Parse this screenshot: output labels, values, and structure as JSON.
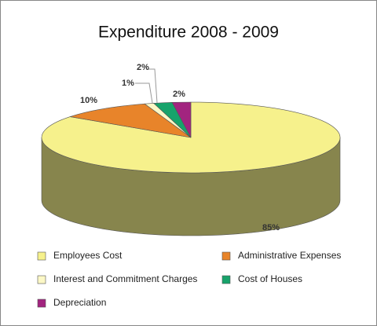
{
  "chart_data": {
    "type": "pie",
    "title": "Expenditure  2008 - 2009",
    "categories": [
      "Employees Cost",
      "Administrative Expenses",
      "Interest and Commitment Charges",
      "Cost of Houses",
      "Depreciation"
    ],
    "values": [
      85,
      10,
      1,
      2,
      2
    ],
    "value_labels": [
      "85%",
      "10%",
      "1%",
      "2%",
      "2%"
    ],
    "colors": [
      "#f6f18c",
      "#e8842a",
      "#fcf8c6",
      "#17a36b",
      "#a2247f"
    ],
    "legend": "bottom"
  }
}
